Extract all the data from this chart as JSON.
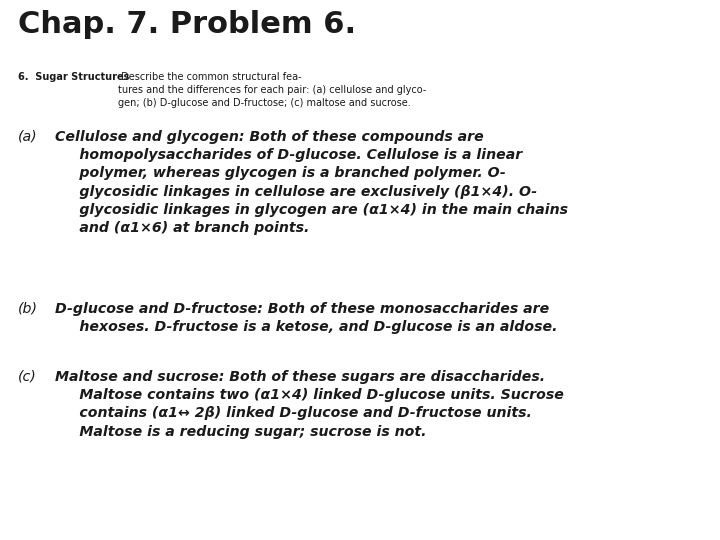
{
  "title": "Chap. 7. Problem 6.",
  "subtitle_bold": "6.  Sugar Structures",
  "subtitle_normal": " Describe the common structural fea-\ntures and the differences for each pair: (a) cellulose and glyco-\ngen; (b) D-glucose and D-fructose; (c) maltose and sucrose.",
  "section_a_label": "(a)",
  "section_a_text": "Cellulose and glycogen: Both of these compounds are\n     homopolysaccharides of D-glucose. Cellulose is a linear\n     polymer, whereas glycogen is a branched polymer. O-\n     glycosidic linkages in cellulose are exclusively (β1×4). O-\n     glycosidic linkages in glycogen are (α1×4) in the main chains\n     and (α1×6) at branch points.",
  "section_b_label": "(b)",
  "section_b_text": "D-glucose and D-fructose: Both of these monosaccharides are\n     hexoses. D-fructose is a ketose, and D-glucose is an aldose.",
  "section_c_label": "(c)",
  "section_c_text": "Maltose and sucrose: Both of these sugars are disaccharides.\n     Maltose contains two (α1×4) linked D-glucose units. Sucrose\n     contains (α1↔ 2β) linked D-glucose and D-fructose units.\n     Maltose is a reducing sugar; sucrose is not.",
  "bg_color": "#ffffff",
  "text_color": "#1a1a1a",
  "title_fontsize": 22,
  "subtitle_fontsize": 7.0,
  "body_fontsize": 10.2,
  "label_fontsize": 10.2
}
